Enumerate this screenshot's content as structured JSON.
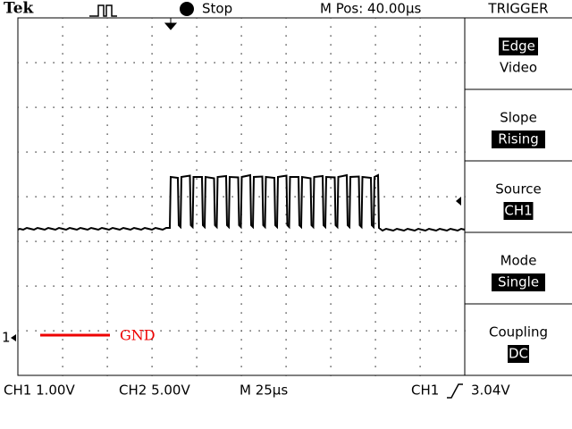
{
  "header": {
    "brand": "Tek",
    "status": "Stop",
    "position": "M Pos: 40.00µs"
  },
  "trigger_menu": {
    "title": "TRIGGER",
    "items": [
      {
        "options": [
          "Edge",
          "Video"
        ]
      },
      {
        "label": "Slope",
        "value": "Rising"
      },
      {
        "label": "Source",
        "value": "CH1"
      },
      {
        "label": "Mode",
        "value": "Single"
      },
      {
        "label": "Coupling",
        "value": "DC"
      }
    ]
  },
  "screen": {
    "channel_marker": "1",
    "annotation": "GND"
  },
  "footer": {
    "ch1_scale": "CH1 1.00V",
    "ch2_scale": "CH2 5.00V",
    "time_scale": "M 25µs",
    "trigger_source": "CH1",
    "trigger_level": "3.04V"
  }
}
